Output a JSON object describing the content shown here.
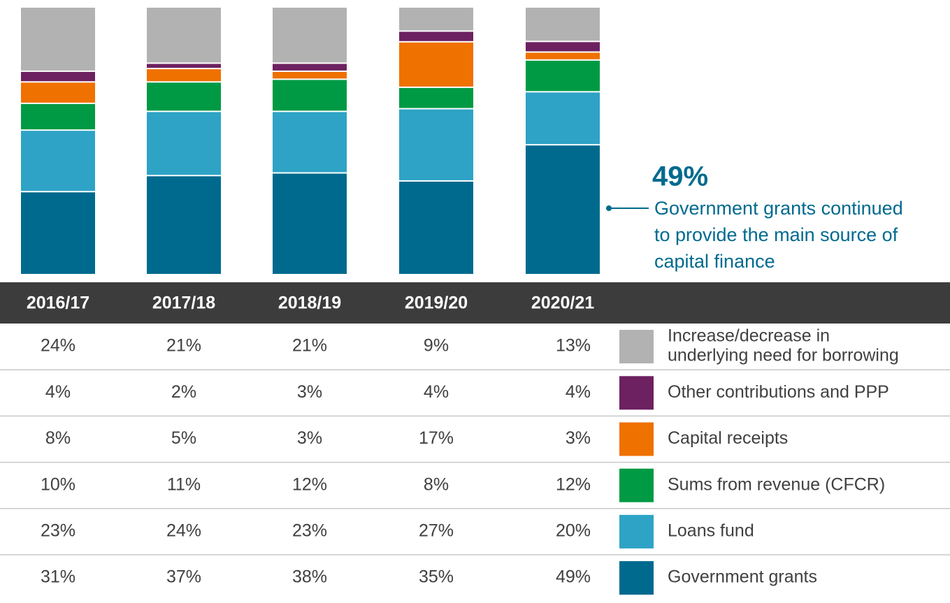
{
  "chart_data": {
    "type": "bar",
    "stacked": true,
    "categories": [
      "2016/17",
      "2017/18",
      "2018/19",
      "2019/20",
      "2020/21"
    ],
    "series": [
      {
        "name": "Government grants",
        "color": "#006a8e",
        "values": [
          31,
          37,
          38,
          35,
          49
        ],
        "value_labels": [
          "31%",
          "37%",
          "38%",
          "35%",
          "49%"
        ]
      },
      {
        "name": "Loans fund",
        "color": "#2ea3c6",
        "values": [
          23,
          24,
          23,
          27,
          20
        ],
        "value_labels": [
          "23%",
          "24%",
          "23%",
          "27%",
          "20%"
        ]
      },
      {
        "name": "Sums from revenue (CFCR)",
        "color": "#009a44",
        "values": [
          10,
          11,
          12,
          8,
          12
        ],
        "value_labels": [
          "10%",
          "11%",
          "12%",
          "8%",
          "12%"
        ]
      },
      {
        "name": "Capital receipts",
        "color": "#ef7100",
        "values": [
          8,
          5,
          3,
          17,
          3
        ],
        "value_labels": [
          "8%",
          "5%",
          "3%",
          "17%",
          "3%"
        ]
      },
      {
        "name": "Other contributions and PPP",
        "color": "#6d2160",
        "values": [
          4,
          2,
          3,
          4,
          4
        ],
        "value_labels": [
          "4%",
          "2%",
          "3%",
          "4%",
          "4%"
        ]
      },
      {
        "name": [
          "Increase/decrease in",
          "underlying need for borrowing"
        ],
        "color": "#b2b2b2",
        "values": [
          24,
          21,
          21,
          9,
          13
        ],
        "value_labels": [
          "24%",
          "21%",
          "21%",
          "9%",
          "13%"
        ]
      }
    ],
    "annotation": {
      "value": "49%",
      "text": [
        "Government grants continued",
        "to provide the main source of",
        "capital finance"
      ],
      "color": "#006a8e"
    }
  }
}
